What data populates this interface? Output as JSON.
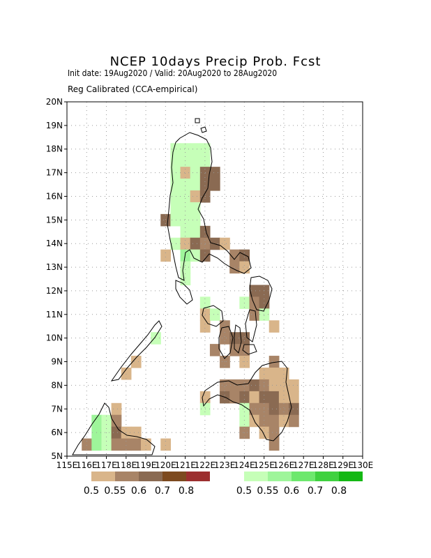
{
  "title": "NCEP 10days Precip Prob. Fcst",
  "subtitle_dates": "Init date: 19Aug2020 / Valid: 20Aug2020 to 28Aug2020",
  "subtitle_method": "Reg Calibrated (CCA-empirical)",
  "chart_data": {
    "type": "heatmap",
    "x_ticks": [
      "115E",
      "116E",
      "117E",
      "118E",
      "119E",
      "120E",
      "121E",
      "122E",
      "123E",
      "124E",
      "125E",
      "126E",
      "127E",
      "128E",
      "129E",
      "130E"
    ],
    "y_ticks": [
      "5N",
      "6N",
      "7N",
      "8N",
      "9N",
      "10N",
      "11N",
      "12N",
      "13N",
      "14N",
      "15N",
      "16N",
      "17N",
      "18N",
      "19N",
      "20N"
    ],
    "lon_range": [
      115,
      130
    ],
    "lat_range": [
      5,
      20
    ],
    "grid": "dotted",
    "cell_size_deg": 0.5,
    "dry_colors": [
      "#d9b58a",
      "#a88467",
      "#8a6a52",
      "#7d4a1f",
      "#9c2f2f"
    ],
    "wet_colors": [
      "#c6ffb8",
      "#9ef59a",
      "#6de86d",
      "#3fd13f",
      "#14b814"
    ],
    "dry_legend_labels": [
      "0.5",
      "0.55",
      "0.6",
      "0.7",
      "0.8"
    ],
    "wet_legend_labels": [
      "0.5",
      "0.55",
      "0.6",
      "0.7",
      "0.8"
    ],
    "cells": [
      {
        "lon": 116,
        "lat": 5.5,
        "cat": "dry",
        "level": 2
      },
      {
        "lon": 116.5,
        "lat": 6,
        "cat": "wet",
        "level": 2
      },
      {
        "lon": 116.5,
        "lat": 6.5,
        "cat": "wet",
        "level": 2
      },
      {
        "lon": 116.5,
        "lat": 5.5,
        "cat": "wet",
        "level": 2
      },
      {
        "lon": 117,
        "lat": 6,
        "cat": "wet",
        "level": 1
      },
      {
        "lon": 117,
        "lat": 6.5,
        "cat": "wet",
        "level": 1
      },
      {
        "lon": 117,
        "lat": 5.5,
        "cat": "wet",
        "level": 1
      },
      {
        "lon": 117.5,
        "lat": 7,
        "cat": "dry",
        "level": 1
      },
      {
        "lon": 117.5,
        "lat": 6.5,
        "cat": "dry",
        "level": 2
      },
      {
        "lon": 117.5,
        "lat": 6,
        "cat": "dry",
        "level": 3
      },
      {
        "lon": 117.5,
        "lat": 5.5,
        "cat": "dry",
        "level": 2
      },
      {
        "lon": 118,
        "lat": 6,
        "cat": "dry",
        "level": 1
      },
      {
        "lon": 118,
        "lat": 5.5,
        "cat": "dry",
        "level": 2
      },
      {
        "lon": 118.5,
        "lat": 6,
        "cat": "dry",
        "level": 1
      },
      {
        "lon": 118.5,
        "lat": 5.5,
        "cat": "dry",
        "level": 2
      },
      {
        "lon": 119,
        "lat": 5.5,
        "cat": "dry",
        "level": 1
      },
      {
        "lon": 118,
        "lat": 8.5,
        "cat": "dry",
        "level": 1
      },
      {
        "lon": 118.5,
        "lat": 9,
        "cat": "dry",
        "level": 1
      },
      {
        "lon": 119.5,
        "lat": 10,
        "cat": "wet",
        "level": 1
      },
      {
        "lon": 120,
        "lat": 5.5,
        "cat": "dry",
        "level": 1
      },
      {
        "lon": 120.5,
        "lat": 18,
        "cat": "wet",
        "level": 1
      },
      {
        "lon": 121,
        "lat": 18,
        "cat": "wet",
        "level": 1
      },
      {
        "lon": 121.5,
        "lat": 18,
        "cat": "wet",
        "level": 1
      },
      {
        "lon": 122,
        "lat": 18,
        "cat": "wet",
        "level": 1
      },
      {
        "lon": 120.5,
        "lat": 17.5,
        "cat": "wet",
        "level": 1
      },
      {
        "lon": 121,
        "lat": 17.5,
        "cat": "wet",
        "level": 1
      },
      {
        "lon": 121.5,
        "lat": 17.5,
        "cat": "wet",
        "level": 1
      },
      {
        "lon": 122,
        "lat": 17.5,
        "cat": "wet",
        "level": 1
      },
      {
        "lon": 120.5,
        "lat": 17,
        "cat": "wet",
        "level": 1
      },
      {
        "lon": 121,
        "lat": 17,
        "cat": "dry",
        "level": 1
      },
      {
        "lon": 121.5,
        "lat": 17,
        "cat": "wet",
        "level": 1
      },
      {
        "lon": 122,
        "lat": 17,
        "cat": "dry",
        "level": 3
      },
      {
        "lon": 122.5,
        "lat": 17,
        "cat": "dry",
        "level": 3
      },
      {
        "lon": 120.5,
        "lat": 16.5,
        "cat": "wet",
        "level": 1
      },
      {
        "lon": 121,
        "lat": 16.5,
        "cat": "wet",
        "level": 1
      },
      {
        "lon": 121.5,
        "lat": 16.5,
        "cat": "wet",
        "level": 1
      },
      {
        "lon": 122,
        "lat": 16.5,
        "cat": "dry",
        "level": 3
      },
      {
        "lon": 122.5,
        "lat": 16.5,
        "cat": "dry",
        "level": 3
      },
      {
        "lon": 120.5,
        "lat": 16,
        "cat": "wet",
        "level": 1
      },
      {
        "lon": 121,
        "lat": 16,
        "cat": "wet",
        "level": 1
      },
      {
        "lon": 121.5,
        "lat": 16,
        "cat": "dry",
        "level": 1
      },
      {
        "lon": 122,
        "lat": 16,
        "cat": "dry",
        "level": 3
      },
      {
        "lon": 120.5,
        "lat": 15.5,
        "cat": "wet",
        "level": 1
      },
      {
        "lon": 121,
        "lat": 15.5,
        "cat": "wet",
        "level": 1
      },
      {
        "lon": 121.5,
        "lat": 15.5,
        "cat": "wet",
        "level": 1
      },
      {
        "lon": 120,
        "lat": 15,
        "cat": "dry",
        "level": 3
      },
      {
        "lon": 120.5,
        "lat": 15,
        "cat": "wet",
        "level": 1
      },
      {
        "lon": 121,
        "lat": 15,
        "cat": "wet",
        "level": 1
      },
      {
        "lon": 121.5,
        "lat": 15,
        "cat": "wet",
        "level": 1
      },
      {
        "lon": 121,
        "lat": 14.5,
        "cat": "wet",
        "level": 1
      },
      {
        "lon": 121.5,
        "lat": 14.5,
        "cat": "wet",
        "level": 1
      },
      {
        "lon": 122,
        "lat": 14.5,
        "cat": "dry",
        "level": 3
      },
      {
        "lon": 120.5,
        "lat": 14,
        "cat": "wet",
        "level": 1
      },
      {
        "lon": 121,
        "lat": 14,
        "cat": "dry",
        "level": 1
      },
      {
        "lon": 121.5,
        "lat": 14,
        "cat": "dry",
        "level": 3
      },
      {
        "lon": 122,
        "lat": 14,
        "cat": "dry",
        "level": 2
      },
      {
        "lon": 122.5,
        "lat": 14,
        "cat": "dry",
        "level": 3
      },
      {
        "lon": 123,
        "lat": 14,
        "cat": "dry",
        "level": 1
      },
      {
        "lon": 120,
        "lat": 13.5,
        "cat": "dry",
        "level": 1
      },
      {
        "lon": 121,
        "lat": 13.5,
        "cat": "wet",
        "level": 2
      },
      {
        "lon": 121.5,
        "lat": 13.5,
        "cat": "wet",
        "level": 1
      },
      {
        "lon": 122,
        "lat": 13.5,
        "cat": "dry",
        "level": 3
      },
      {
        "lon": 123.5,
        "lat": 13.5,
        "cat": "dry",
        "level": 2
      },
      {
        "lon": 124,
        "lat": 13.5,
        "cat": "dry",
        "level": 3
      },
      {
        "lon": 121,
        "lat": 13,
        "cat": "wet",
        "level": 1
      },
      {
        "lon": 123.5,
        "lat": 13,
        "cat": "dry",
        "level": 2
      },
      {
        "lon": 124,
        "lat": 13,
        "cat": "dry",
        "level": 1
      },
      {
        "lon": 121,
        "lat": 12.5,
        "cat": "wet",
        "level": 1
      },
      {
        "lon": 124.5,
        "lat": 12,
        "cat": "dry",
        "level": 3
      },
      {
        "lon": 125,
        "lat": 12,
        "cat": "dry",
        "level": 3
      },
      {
        "lon": 124,
        "lat": 11.5,
        "cat": "wet",
        "level": 1
      },
      {
        "lon": 124.5,
        "lat": 11.5,
        "cat": "dry",
        "level": 2
      },
      {
        "lon": 125,
        "lat": 11.5,
        "cat": "dry",
        "level": 3
      },
      {
        "lon": 122,
        "lat": 11.5,
        "cat": "wet",
        "level": 1
      },
      {
        "lon": 122,
        "lat": 11,
        "cat": "dry",
        "level": 1
      },
      {
        "lon": 122.5,
        "lat": 11,
        "cat": "wet",
        "level": 1
      },
      {
        "lon": 124.5,
        "lat": 11,
        "cat": "dry",
        "level": 2
      },
      {
        "lon": 125,
        "lat": 11,
        "cat": "wet",
        "level": 1
      },
      {
        "lon": 122,
        "lat": 10.5,
        "cat": "dry",
        "level": 1
      },
      {
        "lon": 123,
        "lat": 10.5,
        "cat": "dry",
        "level": 2
      },
      {
        "lon": 125.5,
        "lat": 10.5,
        "cat": "dry",
        "level": 1
      },
      {
        "lon": 123,
        "lat": 10,
        "cat": "dry",
        "level": 2
      },
      {
        "lon": 123.5,
        "lat": 10,
        "cat": "dry",
        "level": 3
      },
      {
        "lon": 124,
        "lat": 10,
        "cat": "dry",
        "level": 3
      },
      {
        "lon": 122.5,
        "lat": 9.5,
        "cat": "dry",
        "level": 2
      },
      {
        "lon": 123.5,
        "lat": 9.5,
        "cat": "dry",
        "level": 2
      },
      {
        "lon": 124,
        "lat": 9.5,
        "cat": "dry",
        "level": 2
      },
      {
        "lon": 123,
        "lat": 9,
        "cat": "dry",
        "level": 2
      },
      {
        "lon": 124,
        "lat": 9,
        "cat": "dry",
        "level": 1
      },
      {
        "lon": 125.5,
        "lat": 9,
        "cat": "dry",
        "level": 2
      },
      {
        "lon": 125,
        "lat": 8.5,
        "cat": "dry",
        "level": 1
      },
      {
        "lon": 125.5,
        "lat": 8.5,
        "cat": "dry",
        "level": 1
      },
      {
        "lon": 126,
        "lat": 8.5,
        "cat": "dry",
        "level": 1
      },
      {
        "lon": 123,
        "lat": 8,
        "cat": "dry",
        "level": 2
      },
      {
        "lon": 123.5,
        "lat": 8,
        "cat": "dry",
        "level": 2
      },
      {
        "lon": 124,
        "lat": 8,
        "cat": "dry",
        "level": 2
      },
      {
        "lon": 124.5,
        "lat": 8,
        "cat": "dry",
        "level": 3
      },
      {
        "lon": 125,
        "lat": 8,
        "cat": "dry",
        "level": 2
      },
      {
        "lon": 125.5,
        "lat": 8,
        "cat": "dry",
        "level": 1
      },
      {
        "lon": 126,
        "lat": 8,
        "cat": "dry",
        "level": 1
      },
      {
        "lon": 126.5,
        "lat": 8,
        "cat": "dry",
        "level": 1
      },
      {
        "lon": 123,
        "lat": 7.5,
        "cat": "dry",
        "level": 3
      },
      {
        "lon": 123.5,
        "lat": 7.5,
        "cat": "dry",
        "level": 2
      },
      {
        "lon": 124,
        "lat": 7.5,
        "cat": "dry",
        "level": 3
      },
      {
        "lon": 124.5,
        "lat": 7.5,
        "cat": "dry",
        "level": 1
      },
      {
        "lon": 125,
        "lat": 7.5,
        "cat": "dry",
        "level": 3
      },
      {
        "lon": 125.5,
        "lat": 7.5,
        "cat": "dry",
        "level": 3
      },
      {
        "lon": 126,
        "lat": 7.5,
        "cat": "dry",
        "level": 1
      },
      {
        "lon": 126.5,
        "lat": 7.5,
        "cat": "dry",
        "level": 1
      },
      {
        "lon": 122,
        "lat": 7.5,
        "cat": "dry",
        "level": 1
      },
      {
        "lon": 122,
        "lat": 7,
        "cat": "wet",
        "level": 1
      },
      {
        "lon": 124,
        "lat": 7,
        "cat": "wet",
        "level": 1
      },
      {
        "lon": 124.5,
        "lat": 7,
        "cat": "dry",
        "level": 2
      },
      {
        "lon": 125,
        "lat": 7,
        "cat": "dry",
        "level": 2
      },
      {
        "lon": 125.5,
        "lat": 7,
        "cat": "dry",
        "level": 3
      },
      {
        "lon": 126,
        "lat": 7,
        "cat": "dry",
        "level": 2
      },
      {
        "lon": 126.5,
        "lat": 7,
        "cat": "dry",
        "level": 3
      },
      {
        "lon": 124,
        "lat": 6.5,
        "cat": "wet",
        "level": 1
      },
      {
        "lon": 124.5,
        "lat": 6.5,
        "cat": "dry",
        "level": 1
      },
      {
        "lon": 125,
        "lat": 6.5,
        "cat": "dry",
        "level": 2
      },
      {
        "lon": 125.5,
        "lat": 6.5,
        "cat": "dry",
        "level": 2
      },
      {
        "lon": 126,
        "lat": 6.5,
        "cat": "dry",
        "level": 1
      },
      {
        "lon": 126.5,
        "lat": 6.5,
        "cat": "dry",
        "level": 2
      },
      {
        "lon": 124,
        "lat": 6,
        "cat": "dry",
        "level": 2
      },
      {
        "lon": 125,
        "lat": 6,
        "cat": "dry",
        "level": 1
      },
      {
        "lon": 125.5,
        "lat": 6,
        "cat": "dry",
        "level": 2
      },
      {
        "lon": 125.5,
        "lat": 5.5,
        "cat": "dry",
        "level": 2
      }
    ]
  }
}
